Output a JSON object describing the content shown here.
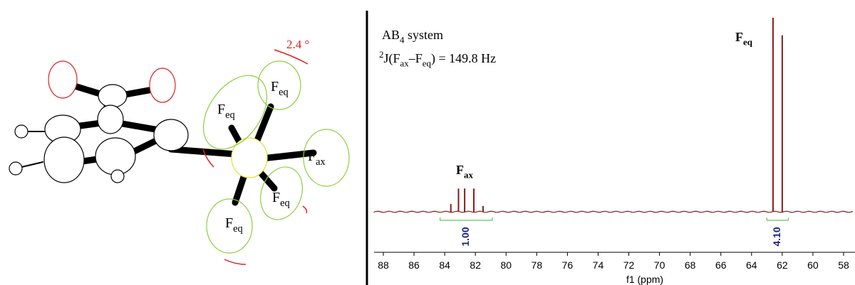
{
  "chart_data": {
    "type": "spectrum",
    "x_label": "f1 (ppm)",
    "xlim": [
      88.6,
      57.3
    ],
    "xticks": [
      88,
      86,
      84,
      82,
      80,
      78,
      76,
      74,
      72,
      70,
      68,
      66,
      64,
      62,
      60,
      58
    ],
    "ylim": [
      0,
      100
    ],
    "color": "#8b1a1a",
    "peaks": {
      "x": [
        83.6,
        83.1,
        82.7,
        82.1,
        81.5,
        62.6,
        62.0
      ],
      "values": [
        4,
        12,
        12,
        12,
        3,
        100,
        91
      ]
    },
    "integrals": {
      "ranges": [
        [
          84.3,
          80.9
        ],
        [
          63.0,
          61.6
        ]
      ],
      "values": [
        1,
        4.1
      ],
      "value_labels": [
        "1.00",
        "4.10"
      ]
    },
    "integral_color": "#7ccf7c",
    "integral_label_color": "#1a237e",
    "annotations": {
      "system": [
        "AB",
        "4",
        " system"
      ],
      "coupling": [
        "2",
        "J",
        "(F",
        "ax",
        "–F",
        "eq",
        ") = 149.8 Hz"
      ],
      "peak_labels": [
        [
          "F",
          "ax"
        ],
        [
          "F",
          "eq"
        ]
      ]
    }
  },
  "molecule": {
    "labels": [
      [
        "F",
        "eq"
      ],
      [
        "F",
        "eq"
      ],
      [
        "F",
        "ax"
      ],
      [
        "F",
        "eq"
      ],
      [
        "F",
        "eq"
      ]
    ],
    "rotation": "2.4 °"
  }
}
